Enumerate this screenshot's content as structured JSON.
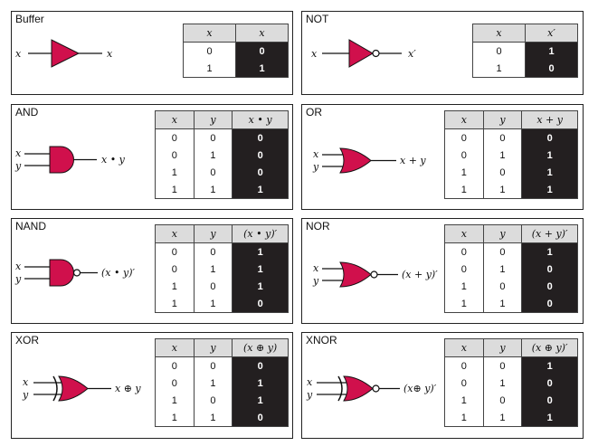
{
  "gates": [
    {
      "title": "Buffer",
      "headers": [
        "x",
        "x"
      ],
      "output_label": "x",
      "inputs": [
        "x"
      ],
      "rows": [
        [
          "0",
          "0"
        ],
        [
          "1",
          "1"
        ]
      ]
    },
    {
      "title": "NOT",
      "headers": [
        "x",
        "x′"
      ],
      "output_label": "x′",
      "inputs": [
        "x"
      ],
      "rows": [
        [
          "0",
          "1"
        ],
        [
          "1",
          "0"
        ]
      ]
    },
    {
      "title": "AND",
      "headers": [
        "x",
        "y",
        "x • y"
      ],
      "output_label": "x • y",
      "inputs": [
        "x",
        "y"
      ],
      "rows": [
        [
          "0",
          "0",
          "0"
        ],
        [
          "0",
          "1",
          "0"
        ],
        [
          "1",
          "0",
          "0"
        ],
        [
          "1",
          "1",
          "1"
        ]
      ]
    },
    {
      "title": "OR",
      "headers": [
        "x",
        "y",
        "x + y"
      ],
      "output_label": "x + y",
      "inputs": [
        "x",
        "y"
      ],
      "rows": [
        [
          "0",
          "0",
          "0"
        ],
        [
          "0",
          "1",
          "1"
        ],
        [
          "1",
          "0",
          "1"
        ],
        [
          "1",
          "1",
          "1"
        ]
      ]
    },
    {
      "title": "NAND",
      "headers": [
        "x",
        "y",
        "(x • y)′"
      ],
      "output_label": "(x • y)′",
      "inputs": [
        "x",
        "y"
      ],
      "rows": [
        [
          "0",
          "0",
          "1"
        ],
        [
          "0",
          "1",
          "1"
        ],
        [
          "1",
          "0",
          "1"
        ],
        [
          "1",
          "1",
          "0"
        ]
      ]
    },
    {
      "title": "NOR",
      "headers": [
        "x",
        "y",
        "(x + y)′"
      ],
      "output_label": "(x + y)′",
      "inputs": [
        "x",
        "y"
      ],
      "rows": [
        [
          "0",
          "0",
          "1"
        ],
        [
          "0",
          "1",
          "0"
        ],
        [
          "1",
          "0",
          "0"
        ],
        [
          "1",
          "1",
          "0"
        ]
      ]
    },
    {
      "title": "XOR",
      "headers": [
        "x",
        "y",
        "(x ⊕ y)"
      ],
      "output_label": "x ⊕ y",
      "inputs": [
        "x",
        "y"
      ],
      "rows": [
        [
          "0",
          "0",
          "0"
        ],
        [
          "0",
          "1",
          "1"
        ],
        [
          "1",
          "0",
          "1"
        ],
        [
          "1",
          "1",
          "0"
        ]
      ]
    },
    {
      "title": "XNOR",
      "headers": [
        "x",
        "y",
        "(x ⊕ y)′"
      ],
      "output_label": "(x⊕ y)′",
      "inputs": [
        "x",
        "y"
      ],
      "rows": [
        [
          "0",
          "0",
          "1"
        ],
        [
          "0",
          "1",
          "0"
        ],
        [
          "1",
          "0",
          "0"
        ],
        [
          "1",
          "1",
          "1"
        ]
      ]
    }
  ],
  "colors": {
    "gate_fill": "#d0104c",
    "output_fill": "#231f20",
    "header_fill": "#dcdcdc"
  }
}
